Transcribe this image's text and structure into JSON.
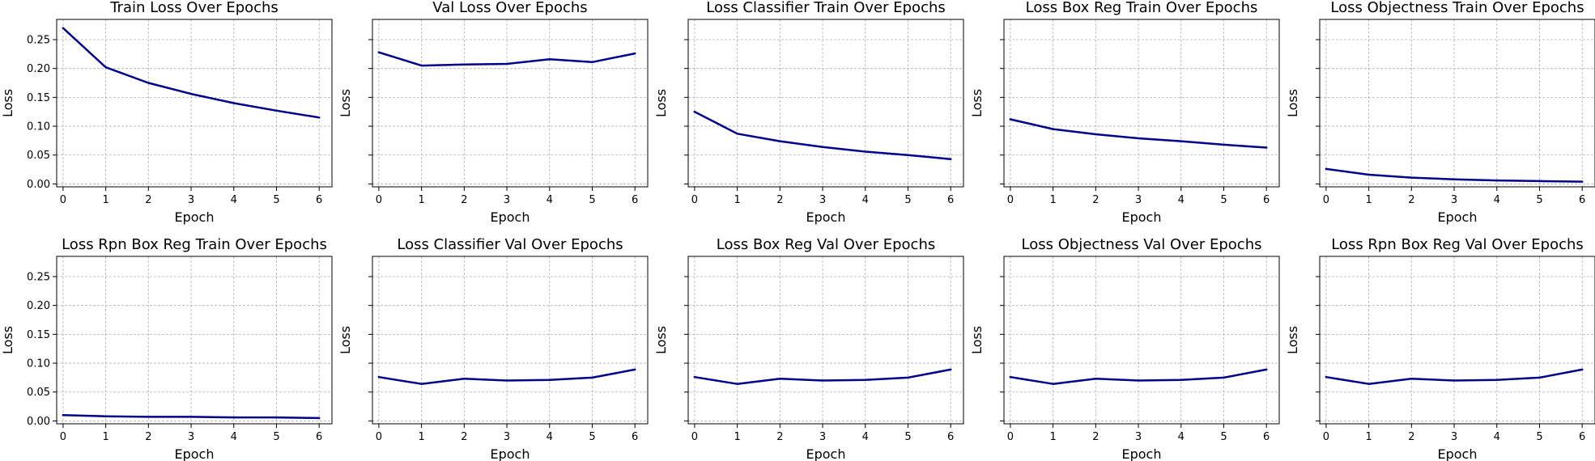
{
  "figure": {
    "line_color": "#00008b",
    "grid_color": "#b0b0b0",
    "grid": true
  },
  "chart_data": [
    {
      "type": "line",
      "title": "Train Loss Over Epochs",
      "xlabel": "Epoch",
      "ylabel": "Loss",
      "x": [
        0,
        1,
        2,
        3,
        4,
        5,
        6
      ],
      "y": [
        0.27,
        0.202,
        0.175,
        0.156,
        0.14,
        0.127,
        0.115
      ],
      "ylim": [
        -0.005,
        0.285
      ],
      "yticks": [
        "0.00",
        "0.05",
        "0.10",
        "0.15",
        "0.20",
        "0.25"
      ],
      "show_ytick_labels": true
    },
    {
      "type": "line",
      "title": "Val Loss Over Epochs",
      "xlabel": "Epoch",
      "ylabel": "Loss",
      "x": [
        0,
        1,
        2,
        3,
        4,
        5,
        6
      ],
      "y": [
        0.228,
        0.205,
        0.207,
        0.208,
        0.216,
        0.211,
        0.226
      ],
      "ylim": [
        -0.005,
        0.285
      ],
      "yticks": [
        "0.00",
        "0.05",
        "0.10",
        "0.15",
        "0.20",
        "0.25"
      ],
      "show_ytick_labels": false
    },
    {
      "type": "line",
      "title": "Loss Classifier Train Over Epochs",
      "xlabel": "Epoch",
      "ylabel": "Loss",
      "x": [
        0,
        1,
        2,
        3,
        4,
        5,
        6
      ],
      "y": [
        0.125,
        0.087,
        0.074,
        0.064,
        0.056,
        0.05,
        0.043
      ],
      "ylim": [
        -0.005,
        0.285
      ],
      "yticks": [
        "0.00",
        "0.05",
        "0.10",
        "0.15",
        "0.20",
        "0.25"
      ],
      "show_ytick_labels": false
    },
    {
      "type": "line",
      "title": "Loss Box Reg Train Over Epochs",
      "xlabel": "Epoch",
      "ylabel": "Loss",
      "x": [
        0,
        1,
        2,
        3,
        4,
        5,
        6
      ],
      "y": [
        0.112,
        0.095,
        0.086,
        0.079,
        0.074,
        0.068,
        0.063
      ],
      "ylim": [
        -0.005,
        0.285
      ],
      "yticks": [
        "0.00",
        "0.05",
        "0.10",
        "0.15",
        "0.20",
        "0.25"
      ],
      "show_ytick_labels": false
    },
    {
      "type": "line",
      "title": "Loss Objectness Train Over Epochs",
      "xlabel": "Epoch",
      "ylabel": "Loss",
      "x": [
        0,
        1,
        2,
        3,
        4,
        5,
        6
      ],
      "y": [
        0.026,
        0.016,
        0.011,
        0.008,
        0.006,
        0.005,
        0.004
      ],
      "ylim": [
        -0.005,
        0.285
      ],
      "yticks": [
        "0.00",
        "0.05",
        "0.10",
        "0.15",
        "0.20",
        "0.25"
      ],
      "show_ytick_labels": false
    },
    {
      "type": "line",
      "title": "Loss Rpn Box Reg Train Over Epochs",
      "xlabel": "Epoch",
      "ylabel": "Loss",
      "x": [
        0,
        1,
        2,
        3,
        4,
        5,
        6
      ],
      "y": [
        0.01,
        0.008,
        0.007,
        0.007,
        0.006,
        0.006,
        0.005
      ],
      "ylim": [
        -0.005,
        0.285
      ],
      "yticks": [
        "0.00",
        "0.05",
        "0.10",
        "0.15",
        "0.20",
        "0.25"
      ],
      "show_ytick_labels": true
    },
    {
      "type": "line",
      "title": "Loss Classifier Val Over Epochs",
      "xlabel": "Epoch",
      "ylabel": "Loss",
      "x": [
        0,
        1,
        2,
        3,
        4,
        5,
        6
      ],
      "y": [
        0.076,
        0.064,
        0.073,
        0.07,
        0.071,
        0.075,
        0.089
      ],
      "ylim": [
        -0.005,
        0.285
      ],
      "yticks": [
        "0.00",
        "0.05",
        "0.10",
        "0.15",
        "0.20",
        "0.25"
      ],
      "show_ytick_labels": false
    },
    {
      "type": "line",
      "title": "Loss Box Reg Val Over Epochs",
      "xlabel": "Epoch",
      "ylabel": "Loss",
      "x": [
        0,
        1,
        2,
        3,
        4,
        5,
        6
      ],
      "y": [
        0.076,
        0.064,
        0.073,
        0.07,
        0.071,
        0.075,
        0.089
      ],
      "ylim": [
        -0.005,
        0.285
      ],
      "yticks": [
        "0.00",
        "0.05",
        "0.10",
        "0.15",
        "0.20",
        "0.25"
      ],
      "show_ytick_labels": false
    },
    {
      "type": "line",
      "title": "Loss Objectness Val Over Epochs",
      "xlabel": "Epoch",
      "ylabel": "Loss",
      "x": [
        0,
        1,
        2,
        3,
        4,
        5,
        6
      ],
      "y": [
        0.076,
        0.064,
        0.073,
        0.07,
        0.071,
        0.075,
        0.089
      ],
      "ylim": [
        -0.005,
        0.285
      ],
      "yticks": [
        "0.00",
        "0.05",
        "0.10",
        "0.15",
        "0.20",
        "0.25"
      ],
      "show_ytick_labels": false
    },
    {
      "type": "line",
      "title": "Loss Rpn Box Reg Val Over Epochs",
      "xlabel": "Epoch",
      "ylabel": "Loss",
      "x": [
        0,
        1,
        2,
        3,
        4,
        5,
        6
      ],
      "y": [
        0.076,
        0.064,
        0.073,
        0.07,
        0.071,
        0.075,
        0.089
      ],
      "ylim": [
        -0.005,
        0.285
      ],
      "yticks": [
        "0.00",
        "0.05",
        "0.10",
        "0.15",
        "0.20",
        "0.25"
      ],
      "show_ytick_labels": false
    }
  ]
}
